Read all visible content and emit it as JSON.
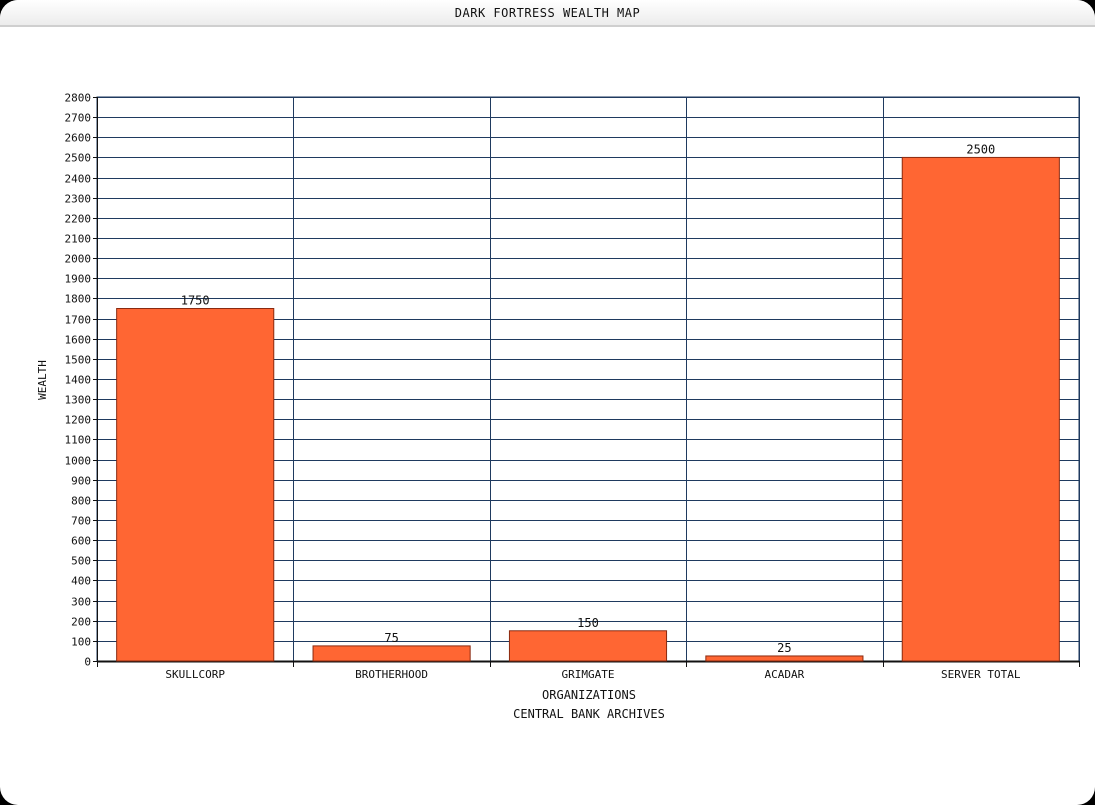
{
  "window": {
    "title": "DARK FORTRESS WEALTH MAP"
  },
  "chart_data": {
    "type": "bar",
    "categories": [
      "SKULLCORP",
      "BROTHERHOOD",
      "GRIMGATE",
      "ACADAR",
      "SERVER TOTAL"
    ],
    "values": [
      1750,
      75,
      150,
      25,
      2500
    ],
    "data_labels": [
      "1750",
      "75",
      "150",
      "25",
      "2500"
    ],
    "xlabel": "ORGANIZATIONS",
    "subtitle": "CENTRAL BANK ARCHIVES",
    "ylabel": "WEALTH",
    "ylim": [
      0,
      2800
    ],
    "ytick_step": 100,
    "grid": true,
    "legend": "none",
    "colors": {
      "bar": "#ff6633",
      "bar_edge": "#8a2a10",
      "grid": "#1f3a5f",
      "axis": "#111111"
    }
  }
}
